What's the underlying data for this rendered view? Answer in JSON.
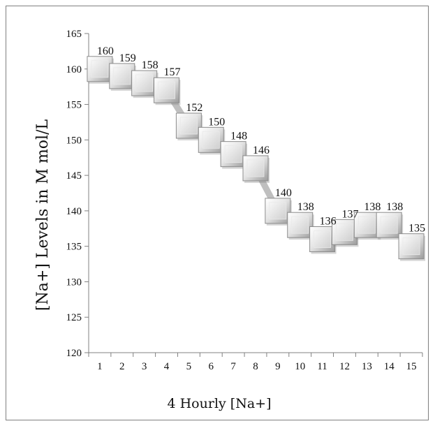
{
  "chart_data": {
    "type": "line",
    "title": "",
    "xlabel": "4 Hourly [Na+]",
    "ylabel": "[Na+] Levels in M mol/L",
    "x": [
      1,
      2,
      3,
      4,
      5,
      6,
      7,
      8,
      9,
      10,
      11,
      12,
      13,
      14,
      15
    ],
    "series": [
      {
        "values": [
          160,
          159,
          158,
          157,
          152,
          150,
          148,
          146,
          140,
          138,
          136,
          137,
          138,
          138,
          135
        ],
        "marker": "square",
        "color": "#bfbfbf"
      }
    ],
    "ylim": [
      120,
      165
    ],
    "yticks": [
      120,
      125,
      130,
      135,
      140,
      145,
      150,
      155,
      160,
      165
    ],
    "xticks": [
      1,
      2,
      3,
      4,
      5,
      6,
      7,
      8,
      9,
      10,
      11,
      12,
      13,
      14,
      15
    ],
    "grid": false,
    "legend": "none",
    "data_labels": true
  }
}
